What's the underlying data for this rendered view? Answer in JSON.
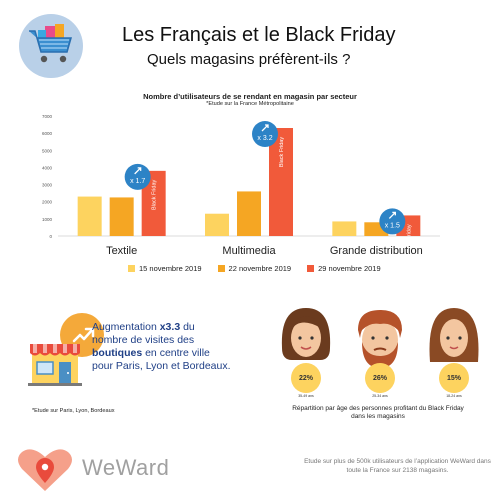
{
  "header": {
    "title": "Les Français et le Black Friday",
    "subtitle": "Quels magasins préfèrent-ils ?"
  },
  "chart_data": {
    "type": "bar",
    "title": "Nombre d’utilisateurs de se rendant en magasin par secteur",
    "subtitle": "*Etude sur la France Métropolitaine",
    "categories": [
      "Textile",
      "Multimedia",
      "Grande distribution"
    ],
    "series": [
      {
        "name": "15 novembre 2019",
        "values": [
          2300,
          1300,
          850
        ],
        "color": "#fdd35f"
      },
      {
        "name": "22 novembre 2019",
        "values": [
          2250,
          2600,
          800
        ],
        "color": "#f5a623"
      },
      {
        "name": "29 novembre 2019",
        "values": [
          3800,
          6300,
          1200
        ],
        "color": "#f15a3a"
      }
    ],
    "bar_label": "Black Friday",
    "multipliers": [
      "x 1.7",
      "x 3.2",
      "x 1.5"
    ],
    "ylim": [
      0,
      7000
    ],
    "yticks": [
      0,
      1000,
      2000,
      3000,
      4000,
      5000,
      6000,
      7000
    ],
    "xlabel": "",
    "ylabel": "",
    "grid": false,
    "legend": "bottom",
    "accent_color": "#2d83c6"
  },
  "store_block": {
    "text_pre": "Augmentation",
    "bold1": "x3.3",
    "text_mid": "du nombre de visites des",
    "bold2": "boutiques",
    "text_post": "en centre ville pour Paris, Lyon et Bordeaux.",
    "footnote": "*Etude sur Paris, Lyon, Bordeaux",
    "icon": "store-icon"
  },
  "age_groups": [
    {
      "percent": "22%",
      "age": "35-49 ans",
      "icon": "woman-dark-hair-icon"
    },
    {
      "percent": "26%",
      "age": "25-34 ans",
      "icon": "bearded-man-icon"
    },
    {
      "percent": "15%",
      "age": "18-24 ans",
      "icon": "woman-long-hair-icon"
    }
  ],
  "age_caption": "Répartition par âge des personnes profitant du Black Friday dans les magasins",
  "brand": {
    "name": "WeWard",
    "icon": "weward-heart-pin-icon",
    "footnote": "Etude sur plus de 500k utilisateurs de l’application WeWard dans toute la France sur 2138 magasins."
  }
}
